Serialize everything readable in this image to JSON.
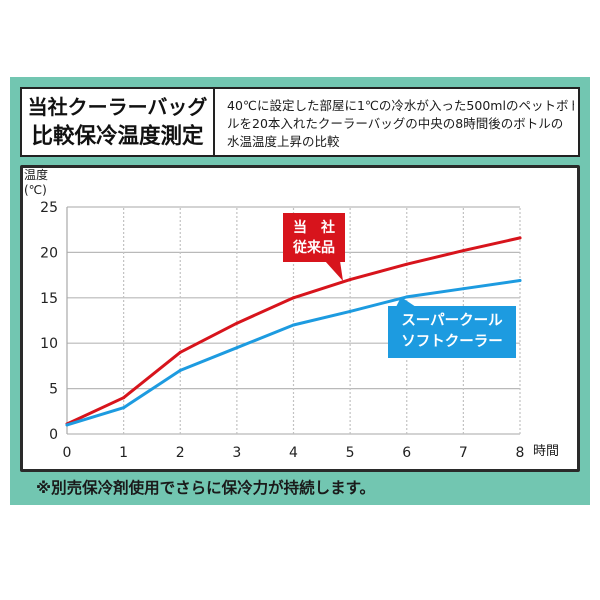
{
  "header": {
    "title_lines": [
      "当社クーラーバッグ",
      "比較保冷温度測定"
    ],
    "description_lines": [
      "40℃に設定した部屋に1℃の冷水が入った500mlのペットボト",
      "ルを20本入れたクーラーバッグの中央の8時間後のボトルの",
      "水温温度上昇の比較"
    ]
  },
  "chart_data": {
    "type": "line",
    "ylabel": [
      "温度",
      "(℃)"
    ],
    "xlabel": "時間",
    "x": [
      0,
      1,
      2,
      3,
      4,
      5,
      6,
      7,
      8
    ],
    "xlim": [
      0,
      8
    ],
    "ylim": [
      0,
      25
    ],
    "yticks": [
      0,
      5,
      10,
      15,
      20,
      25
    ],
    "grid": true,
    "series": [
      {
        "label_lines": [
          "当　社",
          "従来品"
        ],
        "color": "#d7141c",
        "values": [
          1.1,
          4.0,
          9.0,
          12.2,
          15.0,
          17.0,
          18.7,
          20.2,
          21.6
        ]
      },
      {
        "label_lines": [
          "スーパークール",
          "ソフトクーラー"
        ],
        "color": "#1d9be0",
        "values": [
          1.0,
          2.9,
          7.0,
          9.5,
          12.0,
          13.5,
          15.1,
          16.0,
          16.9
        ]
      }
    ]
  },
  "footer": {
    "note": "※別売保冷剤使用でさらに保冷力が持続します。"
  },
  "colors": {
    "panel": "#72c6b1",
    "frame": "#222222"
  }
}
